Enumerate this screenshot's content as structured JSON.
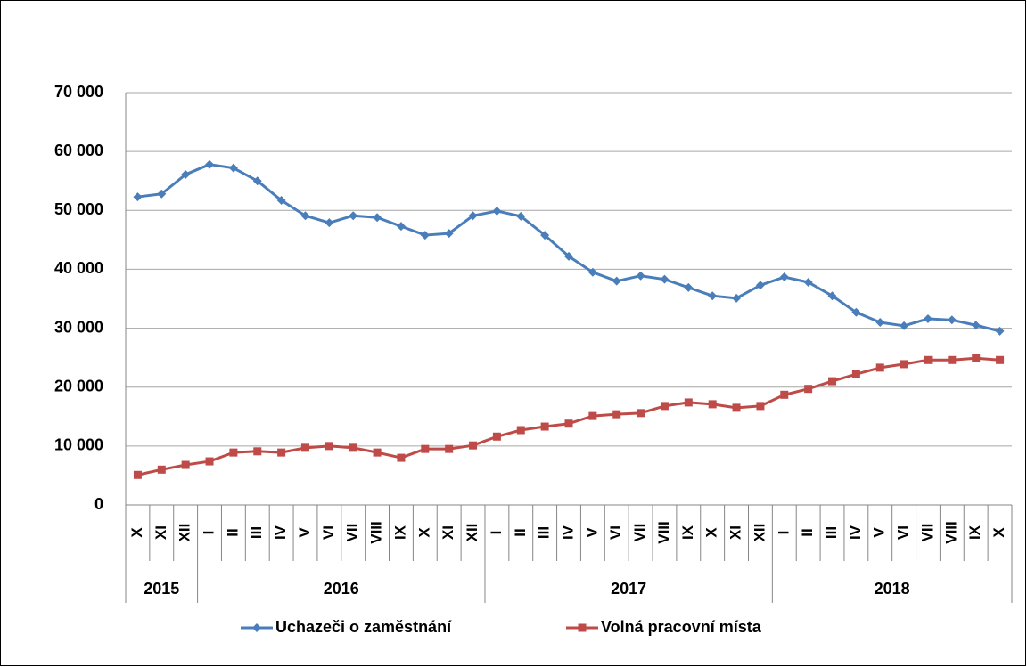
{
  "chart_data": {
    "type": "line",
    "categories": [
      "X",
      "XI",
      "XII",
      "I",
      "II",
      "III",
      "IV",
      "V",
      "VI",
      "VII",
      "VIII",
      "IX",
      "X",
      "XI",
      "XII",
      "I",
      "II",
      "III",
      "IV",
      "V",
      "VI",
      "VII",
      "VIII",
      "IX",
      "X",
      "XI",
      "XII",
      "I",
      "II",
      "III",
      "IV",
      "V",
      "VI",
      "VII",
      "VIII",
      "IX",
      "X"
    ],
    "groups": [
      {
        "label": "2015",
        "size": 3
      },
      {
        "label": "2016",
        "size": 12
      },
      {
        "label": "2017",
        "size": 12
      },
      {
        "label": "2018",
        "size": 10
      }
    ],
    "series": [
      {
        "name": "Uchazeči o zaměstnání",
        "color": "#4a7ebb",
        "marker": "diamond",
        "values": [
          52300,
          52800,
          56100,
          57800,
          57200,
          55000,
          51700,
          49100,
          47900,
          49100,
          48800,
          47300,
          45800,
          46100,
          49100,
          49900,
          49000,
          45800,
          42200,
          39500,
          38000,
          38900,
          38300,
          36900,
          35500,
          35100,
          37300,
          38700,
          37800,
          35500,
          32700,
          31000,
          30400,
          31600,
          31400,
          30500,
          29500
        ]
      },
      {
        "name": "Volná pracovní místa",
        "color": "#be4b48",
        "marker": "square",
        "values": [
          5100,
          6000,
          6800,
          7400,
          8900,
          9100,
          8900,
          9700,
          10000,
          9700,
          8900,
          8000,
          9500,
          9500,
          10100,
          11600,
          12700,
          13300,
          13800,
          15100,
          15400,
          15600,
          16800,
          17400,
          17100,
          16500,
          16800,
          18700,
          19700,
          21000,
          22200,
          23300,
          23900,
          24600,
          24600,
          24900,
          24600
        ]
      }
    ],
    "ylim": [
      0,
      70000
    ],
    "yticks": [
      {
        "value": 0,
        "label": "0"
      },
      {
        "value": 10000,
        "label": "10 000"
      },
      {
        "value": 20000,
        "label": "20 000"
      },
      {
        "value": 30000,
        "label": "30 000"
      },
      {
        "value": 40000,
        "label": "40 000"
      },
      {
        "value": 50000,
        "label": "50 000"
      },
      {
        "value": 60000,
        "label": "60 000"
      },
      {
        "value": 70000,
        "label": "70 000"
      }
    ],
    "grid": true,
    "legend": "bottom"
  }
}
